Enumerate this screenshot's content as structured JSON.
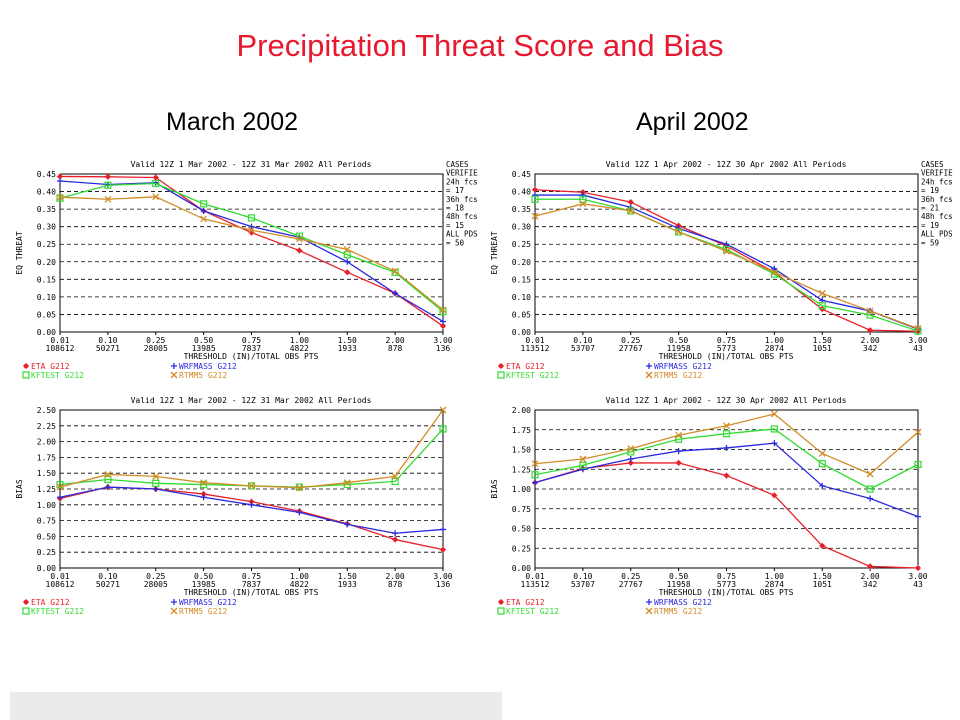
{
  "title": "Precipitation Threat Score and Bias",
  "months": [
    "March 2002",
    "April 2002"
  ],
  "colors": {
    "ETA": "#e8202a",
    "WRFMASS": "#2a2ae0",
    "KFTEST": "#30dc30",
    "RTMM5": "#d28c28"
  },
  "chart_data": [
    {
      "type": "line",
      "title": "Valid 12Z  1 Mar 2002 - 12Z 31 Mar 2002 All Periods",
      "ylabel": "EQ THREAT",
      "xlabel": "THRESHOLD (IN)/TOTAL OBS PTS",
      "x": [
        "0.01",
        "0.10",
        "0.25",
        "0.50",
        "0.75",
        "1.00",
        "1.50",
        "2.00",
        "3.00"
      ],
      "obs_pts": [
        "108612",
        "50271",
        "28005",
        "13985",
        "7837",
        "4822",
        "1933",
        "878",
        "136"
      ],
      "ylim": [
        0,
        0.45
      ],
      "yticks": [
        "0.00",
        "0.05",
        "0.10",
        "0.15",
        "0.20",
        "0.25",
        "0.30",
        "0.35",
        "0.40",
        "0.45"
      ],
      "grid": true,
      "cases": [
        "CASES",
        "VERIFIED",
        "24h fcst",
        "= 17",
        "36h fcst",
        "= 18",
        "48h fcst",
        "= 15",
        "ALL PDS",
        "= 50"
      ],
      "series": [
        {
          "name": "ETA",
          "values": [
            0.443,
            0.442,
            0.44,
            0.345,
            0.283,
            0.232,
            0.17,
            0.11,
            0.017
          ]
        },
        {
          "name": "WRFMASS",
          "values": [
            0.43,
            0.42,
            0.425,
            0.345,
            0.3,
            0.27,
            0.2,
            0.11,
            0.03
          ]
        },
        {
          "name": "KFTEST",
          "values": [
            0.381,
            0.418,
            0.423,
            0.365,
            0.325,
            0.273,
            0.22,
            0.17,
            0.058
          ]
        },
        {
          "name": "RTMM5",
          "values": [
            0.384,
            0.378,
            0.385,
            0.322,
            0.29,
            0.265,
            0.235,
            0.173,
            0.063
          ]
        }
      ],
      "legend": [
        {
          "label": "ETA  G212",
          "series": "ETA"
        },
        {
          "label": "WRFMASS  G212",
          "series": "WRFMASS"
        },
        {
          "label": "KFTEST  G212",
          "series": "KFTEST"
        },
        {
          "label": "RTMM5  G212",
          "series": "RTMM5"
        }
      ]
    },
    {
      "type": "line",
      "title": "Valid 12Z  1 Apr 2002 - 12Z 30 Apr 2002 All Periods",
      "ylabel": "EQ THREAT",
      "xlabel": "THRESHOLD (IN)/TOTAL OBS PTS",
      "x": [
        "0.01",
        "0.10",
        "0.25",
        "0.50",
        "0.75",
        "1.00",
        "1.50",
        "2.00",
        "3.00"
      ],
      "obs_pts": [
        "113512",
        "53707",
        "27767",
        "11958",
        "5773",
        "2874",
        "1051",
        "342",
        "43"
      ],
      "ylim": [
        0,
        0.45
      ],
      "yticks": [
        "0.00",
        "0.05",
        "0.10",
        "0.15",
        "0.20",
        "0.25",
        "0.30",
        "0.35",
        "0.40",
        "0.45"
      ],
      "grid": true,
      "cases": [
        "CASES",
        "VERIFIED",
        "24h fcst",
        "= 19",
        "36h fcst",
        "= 21",
        "48h fcst",
        "= 19",
        "ALL PDS",
        "= 59"
      ],
      "series": [
        {
          "name": "ETA",
          "values": [
            0.405,
            0.398,
            0.37,
            0.303,
            0.245,
            0.17,
            0.065,
            0.005,
            0.002
          ]
        },
        {
          "name": "WRFMASS",
          "values": [
            0.39,
            0.39,
            0.355,
            0.295,
            0.25,
            0.18,
            0.09,
            0.06,
            0.008
          ]
        },
        {
          "name": "KFTEST",
          "values": [
            0.378,
            0.378,
            0.345,
            0.285,
            0.235,
            0.165,
            0.075,
            0.048,
            0.003
          ]
        },
        {
          "name": "RTMM5",
          "values": [
            0.33,
            0.365,
            0.345,
            0.285,
            0.23,
            0.17,
            0.11,
            0.06,
            0.01
          ]
        }
      ],
      "legend": [
        {
          "label": "ETA  G212",
          "series": "ETA"
        },
        {
          "label": "WRFMASS  G212",
          "series": "WRFMASS"
        },
        {
          "label": "KFTEST  G212",
          "series": "KFTEST"
        },
        {
          "label": "RTMM5  G212",
          "series": "RTMM5"
        }
      ]
    },
    {
      "type": "line",
      "title": "Valid 12Z  1 Mar 2002 - 12Z 31 Mar 2002 All Periods",
      "ylabel": "BIAS",
      "xlabel": "THRESHOLD (IN)/TOTAL OBS PTS",
      "x": [
        "0.01",
        "0.10",
        "0.25",
        "0.50",
        "0.75",
        "1.00",
        "1.50",
        "2.00",
        "3.00"
      ],
      "obs_pts": [
        "108612",
        "50271",
        "28005",
        "13985",
        "7837",
        "4822",
        "1933",
        "878",
        "136"
      ],
      "ylim": [
        0,
        2.5
      ],
      "yticks": [
        "0.00",
        "0.25",
        "0.50",
        "0.75",
        "1.00",
        "1.25",
        "1.50",
        "1.75",
        "2.00",
        "2.25",
        "2.50"
      ],
      "grid": true,
      "cases": [],
      "series": [
        {
          "name": "ETA",
          "values": [
            1.1,
            1.28,
            1.25,
            1.17,
            1.05,
            0.9,
            0.7,
            0.45,
            0.29
          ]
        },
        {
          "name": "WRFMASS",
          "values": [
            1.12,
            1.28,
            1.25,
            1.12,
            1.0,
            0.88,
            0.69,
            0.55,
            0.61
          ]
        },
        {
          "name": "KFTEST",
          "values": [
            1.32,
            1.4,
            1.34,
            1.32,
            1.3,
            1.28,
            1.32,
            1.37,
            2.2
          ]
        },
        {
          "name": "RTMM5",
          "values": [
            1.28,
            1.48,
            1.45,
            1.35,
            1.3,
            1.27,
            1.35,
            1.45,
            2.5
          ]
        }
      ],
      "legend": [
        {
          "label": "ETA  G212",
          "series": "ETA"
        },
        {
          "label": "WRFMASS  G212",
          "series": "WRFMASS"
        },
        {
          "label": "KFTEST  G212",
          "series": "KFTEST"
        },
        {
          "label": "RTMM5  G212",
          "series": "RTMM5"
        }
      ]
    },
    {
      "type": "line",
      "title": "Valid 12Z  1 Apr 2002 - 12Z 30 Apr 2002 All Periods",
      "ylabel": "BIAS",
      "xlabel": "THRESHOLD (IN)/TOTAL OBS PTS",
      "x": [
        "0.01",
        "0.10",
        "0.25",
        "0.50",
        "0.75",
        "1.00",
        "1.50",
        "2.00",
        "3.00"
      ],
      "obs_pts": [
        "113512",
        "53707",
        "27767",
        "11958",
        "5773",
        "2874",
        "1051",
        "342",
        "43"
      ],
      "ylim": [
        0,
        2.0
      ],
      "yticks": [
        "0.00",
        "0.25",
        "0.50",
        "0.75",
        "1.00",
        "1.25",
        "1.50",
        "1.75",
        "2.00"
      ],
      "grid": true,
      "cases": [],
      "series": [
        {
          "name": "ETA",
          "values": [
            1.08,
            1.26,
            1.33,
            1.33,
            1.17,
            0.92,
            0.28,
            0.02,
            0.0
          ]
        },
        {
          "name": "WRFMASS",
          "values": [
            1.08,
            1.25,
            1.38,
            1.48,
            1.52,
            1.58,
            1.04,
            0.88,
            0.65
          ]
        },
        {
          "name": "KFTEST",
          "values": [
            1.18,
            1.3,
            1.47,
            1.63,
            1.7,
            1.76,
            1.32,
            1.0,
            1.31
          ]
        },
        {
          "name": "RTMM5",
          "values": [
            1.32,
            1.38,
            1.51,
            1.68,
            1.8,
            1.95,
            1.45,
            1.19,
            1.72
          ]
        }
      ],
      "legend": [
        {
          "label": "ETA  G212",
          "series": "ETA"
        },
        {
          "label": "WRFMASS  G212",
          "series": "WRFMASS"
        },
        {
          "label": "KFTEST  G212",
          "series": "KFTEST"
        },
        {
          "label": "RTMM5  G212",
          "series": "RTMM5"
        }
      ]
    }
  ]
}
